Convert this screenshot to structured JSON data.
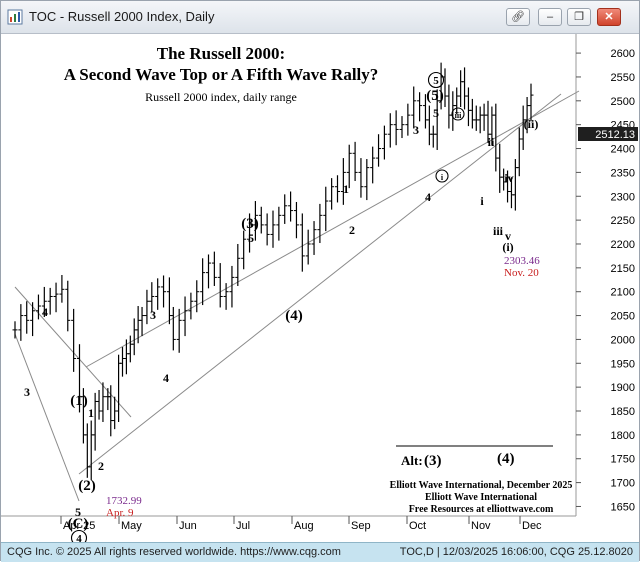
{
  "window": {
    "title": "TOC - Russell 2000 Index, Daily",
    "icons": [
      "chart-app-icon",
      "link-icon",
      "minimize-icon",
      "restore-icon",
      "close-icon"
    ]
  },
  "status": {
    "left": "CQG Inc. © 2025 All rights reserved worldwide. https://www.cqg.com",
    "right": "TOC,D | 12/03/2025 16:06:00, CQG 25.12.8020"
  },
  "chart_data": {
    "type": "candlestick-ohlc",
    "title": "The Russell 2000:",
    "subtitle": "A Second Wave Top or A Fifth Wave Rally?",
    "description": "Russell 2000 index, daily range",
    "ylim": [
      1630,
      2640
    ],
    "y_ticks": [
      1650,
      1700,
      1750,
      1800,
      1850,
      1900,
      1950,
      2000,
      2050,
      2100,
      2150,
      2200,
      2250,
      2300,
      2350,
      2400,
      2450,
      2500,
      2550,
      2600
    ],
    "x_ticks": [
      "Apr 25",
      "May",
      "Jun",
      "Jul",
      "Aug",
      "Sep",
      "Oct",
      "Nov",
      "Dec"
    ],
    "last_price": "2512.13",
    "price_series": [
      [
        0,
        2020
      ],
      [
        6,
        2050
      ],
      [
        12,
        2040
      ],
      [
        18,
        2060
      ],
      [
        24,
        2070
      ],
      [
        30,
        2080
      ],
      [
        36,
        2090
      ],
      [
        42,
        2095
      ],
      [
        48,
        2105
      ],
      [
        54,
        2040
      ],
      [
        60,
        1960
      ],
      [
        66,
        1880
      ],
      [
        70,
        1800
      ],
      [
        74,
        1733
      ],
      [
        78,
        1800
      ],
      [
        82,
        1870
      ],
      [
        86,
        1850
      ],
      [
        90,
        1880
      ],
      [
        95,
        1880
      ],
      [
        98,
        1830
      ],
      [
        102,
        1850
      ],
      [
        106,
        1950
      ],
      [
        110,
        1960
      ],
      [
        114,
        1970
      ],
      [
        118,
        1990
      ],
      [
        122,
        2020
      ],
      [
        126,
        2040
      ],
      [
        130,
        2050
      ],
      [
        135,
        2080
      ],
      [
        140,
        2090
      ],
      [
        146,
        2110
      ],
      [
        152,
        2100
      ],
      [
        158,
        2050
      ],
      [
        162,
        2000
      ],
      [
        168,
        2040
      ],
      [
        174,
        2060
      ],
      [
        180,
        2080
      ],
      [
        186,
        2100
      ],
      [
        192,
        2140
      ],
      [
        198,
        2160
      ],
      [
        204,
        2130
      ],
      [
        210,
        2090
      ],
      [
        216,
        2100
      ],
      [
        222,
        2130
      ],
      [
        228,
        2170
      ],
      [
        234,
        2210
      ],
      [
        240,
        2240
      ],
      [
        246,
        2260
      ],
      [
        252,
        2240
      ],
      [
        258,
        2220
      ],
      [
        264,
        2240
      ],
      [
        270,
        2260
      ],
      [
        276,
        2280
      ],
      [
        282,
        2270
      ],
      [
        288,
        2240
      ],
      [
        294,
        2175
      ],
      [
        300,
        2200
      ],
      [
        306,
        2230
      ],
      [
        312,
        2260
      ],
      [
        318,
        2290
      ],
      [
        324,
        2320
      ],
      [
        330,
        2310
      ],
      [
        336,
        2350
      ],
      [
        342,
        2390
      ],
      [
        348,
        2350
      ],
      [
        354,
        2320
      ],
      [
        360,
        2360
      ],
      [
        366,
        2380
      ],
      [
        372,
        2400
      ],
      [
        378,
        2430
      ],
      [
        384,
        2450
      ],
      [
        390,
        2440
      ],
      [
        396,
        2450
      ],
      [
        402,
        2470
      ],
      [
        408,
        2500
      ],
      [
        414,
        2490
      ],
      [
        420,
        2460
      ],
      [
        424,
        2430
      ],
      [
        428,
        2430
      ],
      [
        432,
        2500
      ],
      [
        436,
        2550
      ],
      [
        440,
        2510
      ],
      [
        444,
        2470
      ],
      [
        448,
        2490
      ],
      [
        452,
        2510
      ],
      [
        456,
        2540
      ],
      [
        460,
        2510
      ],
      [
        464,
        2480
      ],
      [
        468,
        2460
      ],
      [
        472,
        2460
      ],
      [
        476,
        2470
      ],
      [
        480,
        2470
      ],
      [
        484,
        2430
      ],
      [
        488,
        2470
      ],
      [
        492,
        2380
      ],
      [
        496,
        2340
      ],
      [
        500,
        2330
      ],
      [
        504,
        2310
      ],
      [
        508,
        2303
      ],
      [
        512,
        2360
      ],
      [
        516,
        2420
      ],
      [
        520,
        2460
      ],
      [
        524,
        2490
      ],
      [
        528,
        2512
      ]
    ],
    "channels": [
      {
        "name": "left-down-upper",
        "from": [
          14,
          253
        ],
        "to": [
          130,
          383
        ]
      },
      {
        "name": "left-down-lower",
        "from": [
          14,
          300
        ],
        "to": [
          78,
          467
        ]
      },
      {
        "name": "main-upper",
        "from": [
          85,
          333
        ],
        "to": [
          578,
          57
        ]
      },
      {
        "name": "main-lower",
        "from": [
          78,
          440
        ],
        "to": [
          560,
          60
        ]
      }
    ],
    "annotations": [
      {
        "text": "3",
        "x": 26,
        "y": 362,
        "style": "bold"
      },
      {
        "text": "4",
        "x": 44,
        "y": 282,
        "style": "bold"
      },
      {
        "text": "(1)",
        "x": 78,
        "y": 371,
        "style": "bold-large"
      },
      {
        "text": "1",
        "x": 90,
        "y": 383,
        "style": "bold"
      },
      {
        "text": "(2)",
        "x": 86,
        "y": 456,
        "style": "bold-large"
      },
      {
        "text": "2",
        "x": 100,
        "y": 436,
        "style": "bold"
      },
      {
        "text": "1732.99",
        "x": 105,
        "y": 470,
        "style": "purple"
      },
      {
        "text": "Apr. 9",
        "x": 105,
        "y": 482,
        "style": "red"
      },
      {
        "text": "5",
        "x": 77,
        "y": 482,
        "style": "bold"
      },
      {
        "text": "(C)",
        "x": 77,
        "y": 494,
        "style": "bold-large"
      },
      {
        "text": "4",
        "x": 78,
        "y": 508,
        "style": "circle"
      },
      {
        "text": "3",
        "x": 152,
        "y": 285,
        "style": "bold"
      },
      {
        "text": "4",
        "x": 165,
        "y": 348,
        "style": "bold"
      },
      {
        "text": "(3)",
        "x": 249,
        "y": 194,
        "style": "bold-large"
      },
      {
        "text": "5",
        "x": 250,
        "y": 208,
        "style": "bold"
      },
      {
        "text": "(4)",
        "x": 293,
        "y": 286,
        "style": "bold-large"
      },
      {
        "text": "1",
        "x": 345,
        "y": 159,
        "style": "bold"
      },
      {
        "text": "2",
        "x": 351,
        "y": 200,
        "style": "bold"
      },
      {
        "text": "3",
        "x": 415,
        "y": 100,
        "style": "bold"
      },
      {
        "text": "4",
        "x": 427,
        "y": 167,
        "style": "bold"
      },
      {
        "text": "5",
        "x": 435,
        "y": 50,
        "style": "circle"
      },
      {
        "text": "(5)",
        "x": 434,
        "y": 66,
        "style": "bold-large"
      },
      {
        "text": "5",
        "x": 435,
        "y": 83,
        "style": "bold"
      },
      {
        "text": "iii",
        "x": 457,
        "y": 84,
        "style": "circle-small"
      },
      {
        "text": "i",
        "x": 441,
        "y": 146,
        "style": "circle-small"
      },
      {
        "text": "ii",
        "x": 490,
        "y": 112,
        "style": "bold"
      },
      {
        "text": "i",
        "x": 481,
        "y": 171,
        "style": "bold"
      },
      {
        "text": "iii",
        "x": 497,
        "y": 201,
        "style": "bold"
      },
      {
        "text": "iv",
        "x": 508,
        "y": 148,
        "style": "bold"
      },
      {
        "text": "v",
        "x": 507,
        "y": 206,
        "style": "bold"
      },
      {
        "text": "(i)",
        "x": 507,
        "y": 217,
        "style": "bold"
      },
      {
        "text": "2303.46",
        "x": 503,
        "y": 230,
        "style": "purple"
      },
      {
        "text": "Nov. 20",
        "x": 503,
        "y": 242,
        "style": "red"
      },
      {
        "text": "(ii)",
        "x": 530,
        "y": 94,
        "style": "bold"
      }
    ],
    "alt_label": "Alt:",
    "alt_wave_1": "(3)",
    "alt_wave_2": "(4)",
    "credit_lines": [
      "Elliott Wave International, December 2025",
      "Elliott Wave International",
      "Free Resources at elliottwave.com"
    ]
  }
}
